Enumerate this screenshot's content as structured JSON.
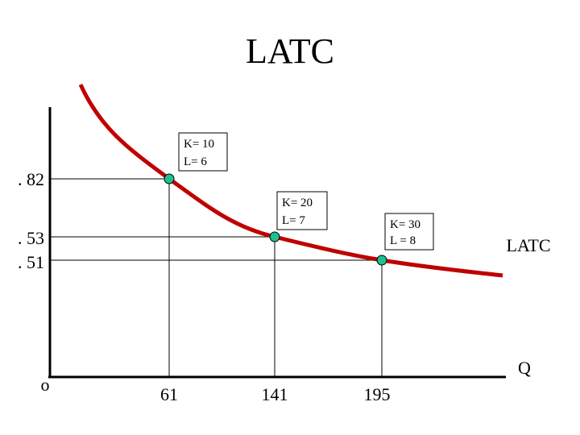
{
  "title": "LATC",
  "y_labels": [
    ". 82",
    ". 53",
    ". 51"
  ],
  "x_labels": [
    "61",
    "141",
    "195"
  ],
  "origin_label": "o",
  "x_axis_label": "Q",
  "curve_label": "LATC",
  "points": [
    {
      "k_label": "K= 10",
      "l_label": "L= 6"
    },
    {
      "k_label": "K= 20",
      "l_label": "L= 7"
    },
    {
      "k_label": "K= 30",
      "l_label": "L = 8"
    }
  ]
}
